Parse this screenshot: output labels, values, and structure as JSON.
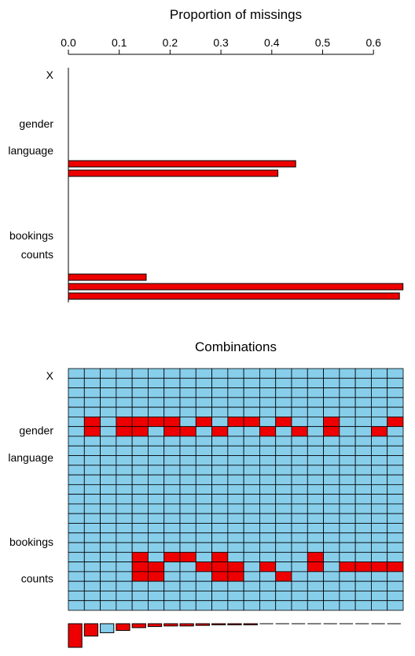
{
  "chart_data": [
    {
      "type": "bar",
      "orientation": "horizontal",
      "title": "Proportion of missings",
      "xlabel": "",
      "ylabel": "",
      "xlim": [
        0,
        0.66
      ],
      "xticks": [
        "0.0",
        "0.1",
        "0.2",
        "0.3",
        "0.4",
        "0.5",
        "0.6"
      ],
      "row_labels": [
        "X",
        "gender",
        "language",
        "bookings",
        "counts"
      ],
      "values": [
        0,
        0,
        0,
        0,
        0,
        0.447,
        0.412,
        0,
        0,
        0,
        0,
        0,
        0,
        0,
        0,
        0,
        0,
        0.153,
        0.658,
        0.651,
        0,
        0,
        0,
        0,
        0
      ],
      "bar_color": "#ee0000",
      "grid": false
    },
    {
      "type": "heatmap",
      "title": "Combinations",
      "row_labels": [
        "X",
        "gender",
        "language",
        "bookings",
        "counts"
      ],
      "missing_color": "#ee0000",
      "observed_color": "#87ceeb",
      "missing_cells": [
        [
          1,
          5
        ],
        [
          1,
          6
        ],
        [
          3,
          5
        ],
        [
          3,
          6
        ],
        [
          4,
          5
        ],
        [
          4,
          6
        ],
        [
          4,
          19
        ],
        [
          4,
          20
        ],
        [
          4,
          21
        ],
        [
          5,
          5
        ],
        [
          5,
          20
        ],
        [
          5,
          21
        ],
        [
          6,
          5
        ],
        [
          6,
          6
        ],
        [
          6,
          19
        ],
        [
          7,
          6
        ],
        [
          7,
          19
        ],
        [
          8,
          5
        ],
        [
          8,
          20
        ],
        [
          9,
          6
        ],
        [
          9,
          19
        ],
        [
          9,
          20
        ],
        [
          9,
          21
        ],
        [
          10,
          5
        ],
        [
          10,
          20
        ],
        [
          10,
          21
        ],
        [
          11,
          5
        ],
        [
          12,
          6
        ],
        [
          12,
          20
        ],
        [
          13,
          5
        ],
        [
          13,
          21
        ],
        [
          14,
          6
        ],
        [
          15,
          19
        ],
        [
          15,
          20
        ],
        [
          16,
          5
        ],
        [
          16,
          6
        ],
        [
          17,
          20
        ],
        [
          18,
          20
        ],
        [
          19,
          6
        ],
        [
          19,
          20
        ],
        [
          20,
          5
        ],
        [
          20,
          20
        ],
        [
          21,
          6
        ],
        [
          21,
          20
        ],
        [
          22,
          5
        ],
        [
          22,
          6
        ],
        [
          23,
          6
        ],
        [
          23,
          19
        ],
        [
          23,
          20
        ],
        [
          24,
          6
        ],
        [
          24,
          19
        ],
        [
          24,
          20
        ]
      ],
      "combination_frequencies": [
        0.42,
        0.22,
        0.16,
        0.12,
        0.07,
        0.05,
        0.04,
        0.04,
        0.03,
        0.02,
        0.02,
        0.02,
        0,
        0,
        0,
        0,
        0,
        0,
        0,
        0,
        0
      ],
      "frequency_missing_pattern": [
        true,
        true,
        false,
        true,
        true,
        true,
        true,
        true,
        true,
        true,
        true,
        true,
        true,
        true,
        true,
        true,
        true,
        true,
        true,
        true,
        true
      ],
      "grid": true
    }
  ]
}
